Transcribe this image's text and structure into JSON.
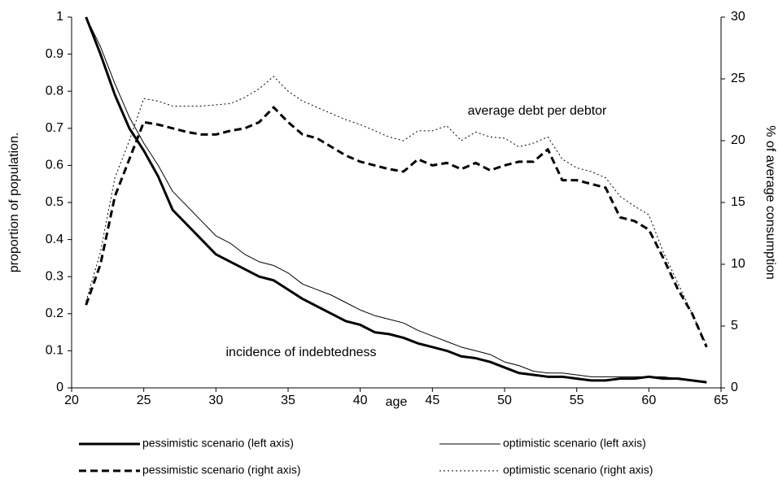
{
  "chart_data": {
    "type": "line",
    "xlabel": "age",
    "ylabel": "proportion of population.",
    "y2label": "% of average consumption",
    "annotations": [
      "average debt per debtor",
      "incidence of indebtedness"
    ],
    "x": [
      21,
      22,
      23,
      24,
      25,
      26,
      27,
      28,
      29,
      30,
      31,
      32,
      33,
      34,
      35,
      36,
      37,
      38,
      39,
      40,
      41,
      42,
      43,
      44,
      45,
      46,
      47,
      48,
      49,
      50,
      51,
      52,
      53,
      54,
      55,
      56,
      57,
      58,
      59,
      60,
      61,
      62,
      63,
      64
    ],
    "xlim": [
      20,
      65
    ],
    "xticks": [
      20,
      25,
      30,
      35,
      40,
      45,
      50,
      55,
      60,
      65
    ],
    "ylim": [
      0,
      1
    ],
    "yticks": [
      0,
      0.1,
      0.2,
      0.3,
      0.4,
      0.5,
      0.6,
      0.7,
      0.8,
      0.9,
      1
    ],
    "y2lim": [
      0,
      30
    ],
    "y2ticks": [
      0,
      5,
      10,
      15,
      20,
      25,
      30
    ],
    "grid": false,
    "legend": "bottom",
    "series": [
      {
        "name": "pessimistic scenario (left axis)",
        "color": "#000000",
        "width": 3,
        "style": "solid",
        "values": [
          1.0,
          0.9,
          0.79,
          0.7,
          0.64,
          0.57,
          0.48,
          0.44,
          0.4,
          0.36,
          0.34,
          0.32,
          0.3,
          0.29,
          0.265,
          0.24,
          0.22,
          0.2,
          0.18,
          0.17,
          0.15,
          0.145,
          0.135,
          0.12,
          0.11,
          0.1,
          0.085,
          0.08,
          0.07,
          0.055,
          0.04,
          0.035,
          0.03,
          0.03,
          0.025,
          0.02,
          0.02,
          0.025,
          0.025,
          0.03,
          0.025,
          0.025,
          0.02,
          0.015
        ]
      },
      {
        "name": "optimistic scenario (left axis)",
        "color": "#000000",
        "width": 1,
        "style": "solid",
        "values": [
          1.0,
          0.92,
          0.82,
          0.73,
          0.66,
          0.6,
          0.53,
          0.49,
          0.45,
          0.41,
          0.39,
          0.36,
          0.34,
          0.33,
          0.31,
          0.28,
          0.265,
          0.25,
          0.23,
          0.21,
          0.195,
          0.185,
          0.175,
          0.155,
          0.14,
          0.125,
          0.11,
          0.1,
          0.09,
          0.07,
          0.06,
          0.045,
          0.04,
          0.04,
          0.035,
          0.03,
          0.03,
          0.03,
          0.03,
          0.03,
          0.03,
          0.025,
          0.02,
          0.015
        ]
      },
      {
        "name": "pessimistic scenario (right axis)",
        "color": "#000000",
        "width": 3,
        "style": "dashed",
        "axis": "y2",
        "values": [
          6.7,
          10,
          15.5,
          18.5,
          21.5,
          21.3,
          21,
          20.7,
          20.5,
          20.5,
          20.8,
          21,
          21.5,
          22.7,
          21.5,
          20.5,
          20.2,
          19.5,
          18.8,
          18.3,
          18,
          17.7,
          17.5,
          18.5,
          18,
          18.2,
          17.7,
          18.2,
          17.6,
          18,
          18.3,
          18.3,
          19.3,
          16.8,
          16.8,
          16.5,
          16.2,
          13.8,
          13.5,
          12.8,
          10.5,
          8,
          6,
          3.3
        ]
      },
      {
        "name": "optimistic scenario (right axis)",
        "color": "#000000",
        "width": 1,
        "style": "dotted",
        "axis": "y2",
        "values": [
          7,
          11,
          17,
          20,
          23.4,
          23.2,
          22.8,
          22.8,
          22.8,
          22.9,
          23,
          23.5,
          24.2,
          25.2,
          24,
          23.2,
          22.7,
          22.2,
          21.7,
          21.3,
          20.8,
          20.3,
          20,
          20.8,
          20.8,
          21.2,
          20,
          20.7,
          20.3,
          20.2,
          19.5,
          19.8,
          20.3,
          18.5,
          17.8,
          17.5,
          17,
          15.5,
          14.7,
          14,
          11,
          8.5,
          6,
          3.5
        ]
      }
    ]
  }
}
